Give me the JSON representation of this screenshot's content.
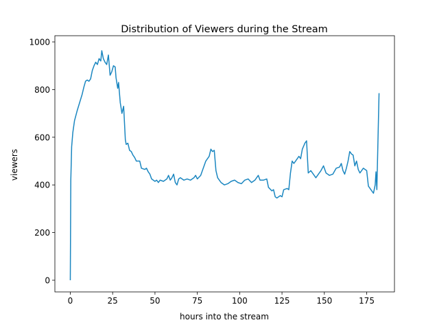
{
  "chart_data": {
    "type": "line",
    "title": "Distribution of Viewers during the Stream",
    "x_label": "hours into the stream",
    "y_label": "viewers",
    "x": [
      0,
      0.3,
      0.8,
      1.5,
      2.5,
      4,
      5.5,
      7,
      8,
      9,
      10,
      11,
      12,
      13,
      14,
      15,
      16,
      17,
      18,
      18.6,
      19.5,
      20.5,
      21.5,
      22.5,
      23.5,
      24.5,
      25.5,
      26.5,
      27,
      28,
      28.5,
      29.5,
      30.5,
      31.5,
      32,
      32.5,
      33,
      34,
      35,
      36,
      37,
      38,
      39,
      41,
      42,
      44,
      45,
      46,
      47,
      48,
      50,
      51,
      52,
      53,
      55,
      57,
      58,
      59,
      60,
      61,
      62,
      63,
      64,
      65,
      67,
      69,
      71,
      73,
      74,
      75,
      77,
      78,
      80,
      82,
      83,
      84,
      85,
      86,
      87,
      89,
      91,
      93,
      95,
      97,
      99,
      101,
      103,
      105,
      107,
      109,
      111,
      112,
      114,
      116,
      117,
      119,
      120,
      121,
      122,
      124,
      125,
      126,
      128,
      129,
      130,
      131,
      132,
      133,
      135,
      136,
      137,
      138.5,
      139.5,
      140.5,
      142,
      143.5,
      145,
      146.5,
      148,
      149.5,
      151,
      153,
      155,
      157,
      159,
      160,
      161,
      162,
      163,
      164,
      165,
      166,
      167,
      168,
      169,
      170,
      171,
      172,
      173,
      174,
      175,
      176,
      177,
      178,
      179,
      180,
      180.5,
      181,
      182.3
    ],
    "series": [
      {
        "name": "viewers",
        "color": "#1a86c0",
        "values": [
          0,
          420,
          560,
          620,
          670,
          710,
          745,
          780,
          810,
          835,
          840,
          835,
          845,
          880,
          900,
          915,
          905,
          930,
          920,
          963,
          930,
          915,
          905,
          945,
          860,
          875,
          900,
          895,
          850,
          805,
          830,
          745,
          700,
          730,
          660,
          590,
          570,
          575,
          545,
          540,
          525,
          515,
          500,
          500,
          470,
          465,
          470,
          455,
          445,
          425,
          415,
          420,
          410,
          420,
          415,
          425,
          440,
          420,
          430,
          445,
          410,
          400,
          425,
          430,
          420,
          425,
          420,
          430,
          440,
          425,
          440,
          460,
          500,
          520,
          550,
          540,
          545,
          460,
          430,
          410,
          400,
          405,
          415,
          420,
          410,
          405,
          420,
          425,
          410,
          420,
          440,
          420,
          420,
          425,
          390,
          375,
          380,
          350,
          345,
          355,
          350,
          380,
          385,
          380,
          450,
          500,
          490,
          500,
          520,
          510,
          550,
          575,
          585,
          450,
          460,
          445,
          430,
          445,
          460,
          480,
          450,
          440,
          445,
          470,
          475,
          490,
          460,
          445,
          470,
          500,
          540,
          530,
          525,
          480,
          500,
          465,
          450,
          460,
          470,
          465,
          460,
          395,
          385,
          375,
          365,
          400,
          455,
          380,
          785
        ]
      }
    ],
    "xlim": [
      -9.1,
      191.4
    ],
    "ylim": [
      -49,
      1026
    ],
    "xticks": [
      0,
      25,
      50,
      75,
      100,
      125,
      150,
      175
    ],
    "yticks": [
      0,
      200,
      400,
      600,
      800,
      1000
    ]
  }
}
